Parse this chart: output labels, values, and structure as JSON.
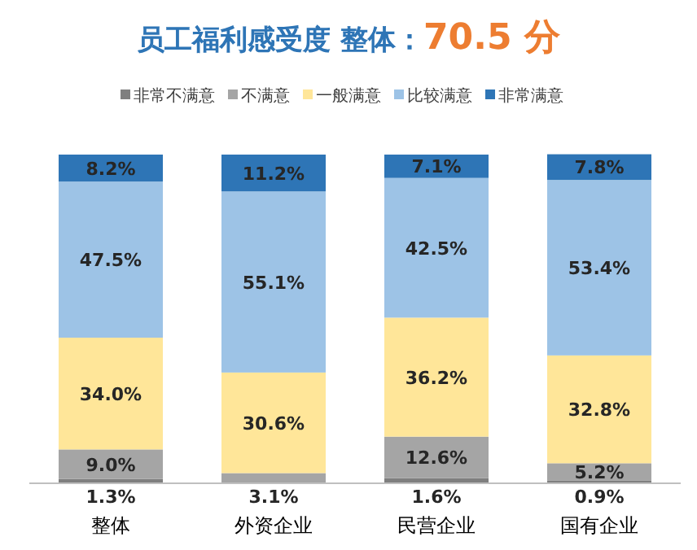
{
  "chart_data": {
    "type": "bar",
    "title": "员工福利感受度  整体：",
    "subtitle": "70.5 分",
    "stacked": true,
    "legend": "top",
    "ylim": [
      0,
      100
    ],
    "categories": [
      "整体",
      "外资企业",
      "民营企业",
      "国有企业"
    ],
    "series": [
      {
        "name": "非常不满意",
        "color": "#7f7f7f",
        "values": [
          1.3,
          0,
          1.6,
          0.9
        ],
        "value_labels": [
          "1.3%",
          null,
          "1.6%",
          "0.9%"
        ]
      },
      {
        "name": "不满意",
        "color": "#a5a5a5",
        "values": [
          9.0,
          3.1,
          12.6,
          5.2
        ],
        "value_labels": [
          "9.0%",
          "3.1%",
          "12.6%",
          "5.2%"
        ]
      },
      {
        "name": "一般满意",
        "color": "#ffe699",
        "values": [
          34.0,
          30.6,
          36.2,
          32.8
        ],
        "value_labels": [
          "34.0%",
          "30.6%",
          "36.2%",
          "32.8%"
        ]
      },
      {
        "name": "比较满意",
        "color": "#9dc3e6",
        "values": [
          47.5,
          55.1,
          42.5,
          53.4
        ],
        "value_labels": [
          "47.5%",
          "55.1%",
          "42.5%",
          "53.4%"
        ]
      },
      {
        "name": "非常满意",
        "color": "#2e75b6",
        "values": [
          8.2,
          11.2,
          7.1,
          7.8
        ],
        "value_labels": [
          "8.2%",
          "11.2%",
          "7.1%",
          "7.8%"
        ]
      }
    ]
  }
}
